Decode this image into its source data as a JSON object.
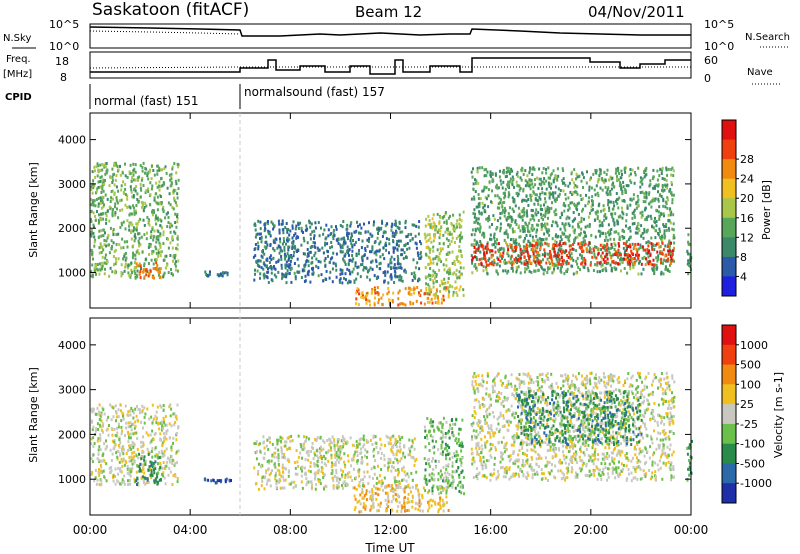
{
  "header": {
    "title": "Saskatoon (fitACF)",
    "beam": "Beam 12",
    "date": "04/Nov/2011"
  },
  "top_panels": {
    "nsky_label": "N.Sky",
    "nsearch_label": "N.Search",
    "nsky_ticks": [
      "10^5",
      "10^0"
    ],
    "nsearch_ticks": [
      "10^5",
      "10^0"
    ],
    "freq_label": "Freq.",
    "freq_unit": "[MHz]",
    "freq_ticks": [
      "18",
      "8"
    ],
    "nave_label": "Nave",
    "nave_ticks": [
      "60",
      "0"
    ],
    "cpid_label": "CPID",
    "cpid_modes": [
      {
        "label": "normal (fast) 151",
        "start_hour": 0
      },
      {
        "label": "normalsound (fast) 157",
        "start_hour": 6
      }
    ]
  },
  "chart_data": [
    {
      "type": "heatmap",
      "name": "power",
      "ylabel": "Slant Range [km]",
      "ylim": [
        200,
        4600
      ],
      "yticks": [
        1000,
        2000,
        3000,
        4000
      ],
      "xlim_hours": [
        0,
        24
      ],
      "colorbar": {
        "label": "Power [dB]",
        "ticks": [
          "4",
          "8",
          "12",
          "16",
          "20",
          "24",
          "28"
        ],
        "colors": [
          "#1f1fe0",
          "#2a5aa8",
          "#3a8a6a",
          "#58a65a",
          "#a8c64a",
          "#f0c020",
          "#f08a10",
          "#f04010",
          "#e01010"
        ]
      },
      "regions": [
        {
          "t0": 0.0,
          "t1": 3.5,
          "r0": 900,
          "r1": 3500,
          "level": 12
        },
        {
          "t0": 1.8,
          "t1": 2.8,
          "r0": 900,
          "r1": 1300,
          "level": 24
        },
        {
          "t0": 4.5,
          "t1": 5.6,
          "r0": 950,
          "r1": 1050,
          "level": 6
        },
        {
          "t0": 6.5,
          "t1": 13.2,
          "r0": 800,
          "r1": 2200,
          "level": 6
        },
        {
          "t0": 10.5,
          "t1": 14.3,
          "r0": 300,
          "r1": 700,
          "level": 22
        },
        {
          "t0": 13.3,
          "t1": 14.9,
          "r0": 500,
          "r1": 2400,
          "level": 14
        },
        {
          "t0": 15.2,
          "t1": 23.3,
          "r0": 1000,
          "r1": 3400,
          "level": 10
        },
        {
          "t0": 15.2,
          "t1": 23.3,
          "r0": 1200,
          "r1": 1700,
          "level": 27
        },
        {
          "t0": 23.8,
          "t1": 24.0,
          "r0": 900,
          "r1": 1900,
          "level": 10
        }
      ]
    },
    {
      "type": "heatmap",
      "name": "velocity",
      "ylabel": "Slant Range [km]",
      "ylim": [
        200,
        4600
      ],
      "yticks": [
        1000,
        2000,
        3000,
        4000
      ],
      "xlim_hours": [
        0,
        24
      ],
      "xticks": [
        "00:00",
        "04:00",
        "08:00",
        "12:00",
        "16:00",
        "20:00",
        "00:00"
      ],
      "xlabel": "Time UT",
      "colorbar": {
        "label": "Velocity [m s-1]",
        "ticks": [
          "1000",
          "500",
          "100",
          "25",
          "-25",
          "-100",
          "-500",
          "-1000"
        ],
        "colors": [
          "#1f2fa8",
          "#2a6aa8",
          "#2a8a4a",
          "#6ac04a",
          "#c8c8c0",
          "#f0c020",
          "#f08a10",
          "#f04010",
          "#e01010"
        ]
      },
      "regions": [
        {
          "t0": 0.0,
          "t1": 3.5,
          "r0": 900,
          "r1": 2700,
          "level": 4
        },
        {
          "t0": 1.8,
          "t1": 2.8,
          "r0": 900,
          "r1": 1600,
          "level": 2
        },
        {
          "t0": 4.5,
          "t1": 5.6,
          "r0": 950,
          "r1": 1050,
          "level": 0
        },
        {
          "t0": 6.5,
          "t1": 13.0,
          "r0": 800,
          "r1": 2000,
          "level": 4
        },
        {
          "t0": 10.5,
          "t1": 14.3,
          "r0": 300,
          "r1": 900,
          "level": 5
        },
        {
          "t0": 13.3,
          "t1": 14.9,
          "r0": 700,
          "r1": 2400,
          "level": 3
        },
        {
          "t0": 15.2,
          "t1": 23.3,
          "r0": 1000,
          "r1": 3400,
          "level": 4
        },
        {
          "t0": 17.0,
          "t1": 22.0,
          "r0": 1800,
          "r1": 3000,
          "level": 2
        },
        {
          "t0": 23.8,
          "t1": 24.0,
          "r0": 900,
          "r1": 1900,
          "level": 2
        }
      ]
    }
  ]
}
